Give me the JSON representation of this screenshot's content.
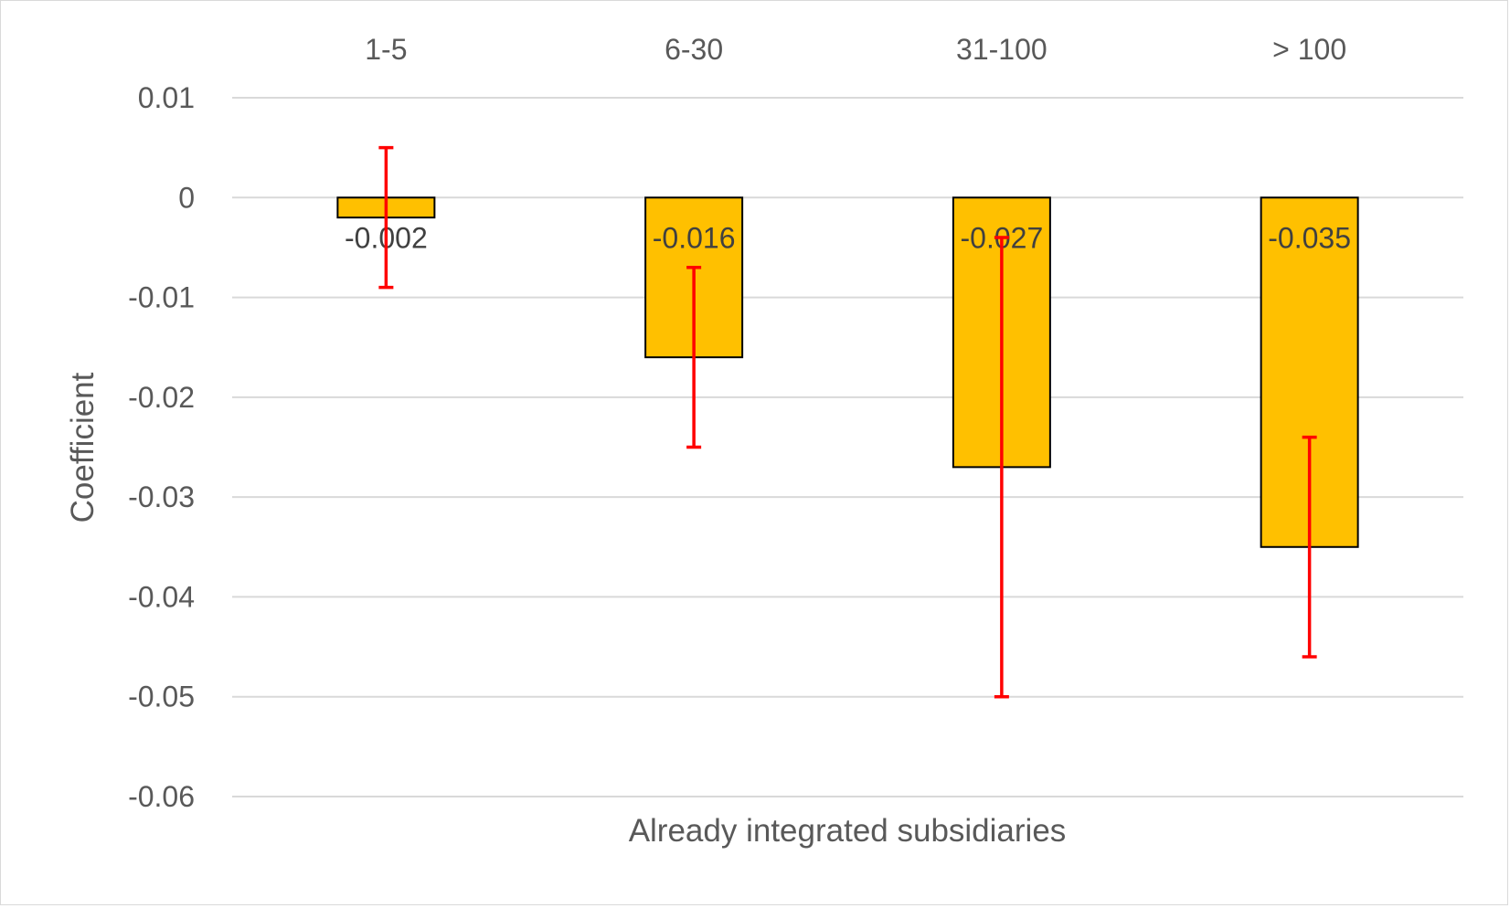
{
  "chart_data": {
    "type": "bar",
    "categories": [
      "1-5",
      "6-30",
      "31-100",
      "> 100"
    ],
    "values": [
      -0.002,
      -0.016,
      -0.027,
      -0.035
    ],
    "data_labels": [
      "-0.002",
      "-0.016",
      "-0.027",
      "-0.035"
    ],
    "error_bars": {
      "lower": [
        -0.009,
        -0.025,
        -0.05,
        -0.046
      ],
      "upper": [
        0.005,
        -0.007,
        -0.004,
        -0.024
      ]
    },
    "title": "",
    "xlabel": "Already integrated subsidiaries",
    "ylabel": "Coefficient",
    "ylim": [
      -0.06,
      0.01
    ],
    "yticks": [
      0.01,
      0,
      -0.01,
      -0.02,
      -0.03,
      -0.04,
      -0.05,
      -0.06
    ],
    "ytick_labels": [
      "0.01",
      "0",
      "-0.01",
      "-0.02",
      "-0.03",
      "-0.04",
      "-0.05",
      "-0.06"
    ],
    "category_axis_position": "top",
    "grid": true,
    "legend": "none",
    "colors": {
      "bar_fill": "#FFC000",
      "bar_outline": "#000000",
      "error_bar": "#FF0000",
      "gridline": "#D9D9D9",
      "text": "#595959"
    }
  }
}
